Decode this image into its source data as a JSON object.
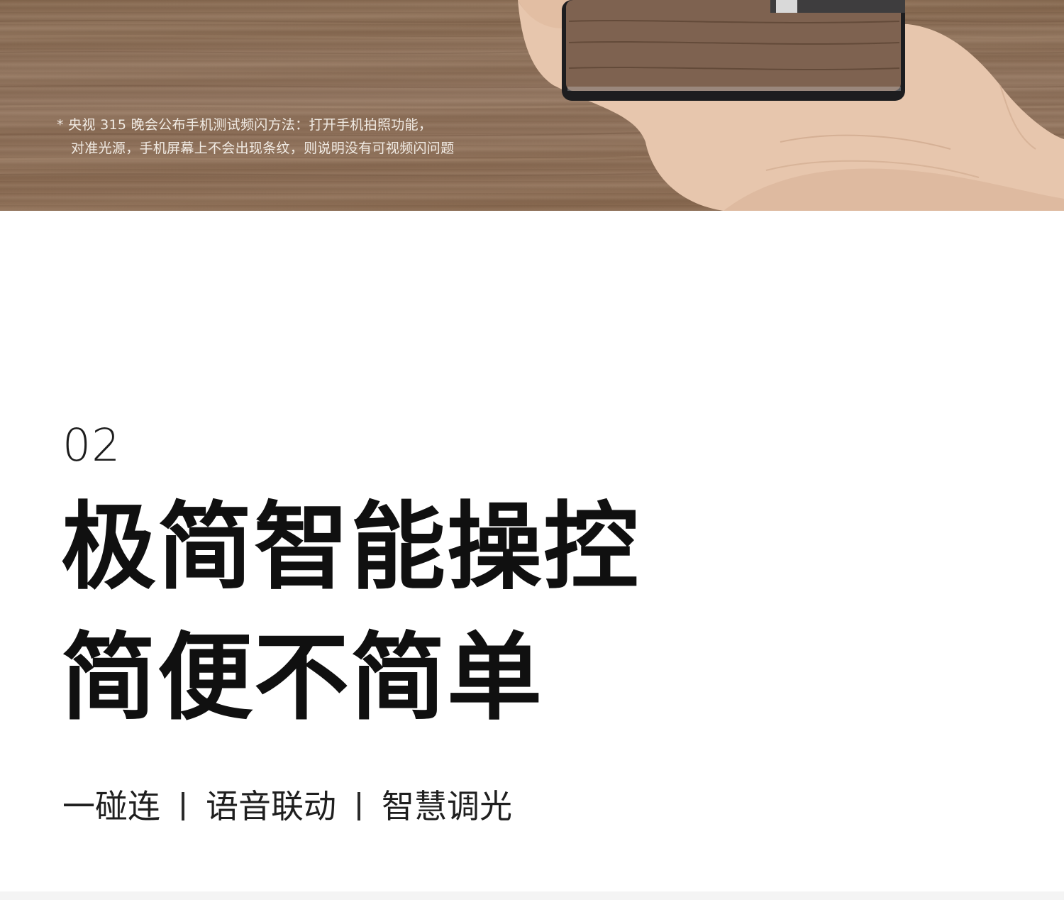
{
  "hero": {
    "caption_line1": "* 央视 315 晚会公布手机测试频闪方法：打开手机拍照功能，",
    "caption_line2": "对准光源，手机屏幕上不会出现条纹，则说明没有可视频闪问题"
  },
  "section": {
    "number": "02",
    "headline_line1": "极简智能操控",
    "headline_line2": "简便不简单"
  },
  "features": [
    "一碰连",
    "语音联动",
    "智慧调光"
  ]
}
